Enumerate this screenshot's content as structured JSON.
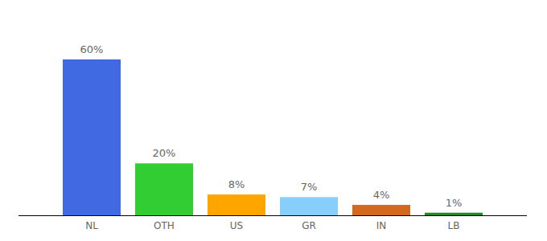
{
  "chart_data": {
    "type": "bar",
    "categories": [
      "NL",
      "OTH",
      "US",
      "GR",
      "IN",
      "LB"
    ],
    "values": [
      60,
      20,
      8,
      7,
      4,
      1
    ],
    "value_labels": [
      "60%",
      "20%",
      "8%",
      "7%",
      "4%",
      "1%"
    ],
    "colors": [
      "#4169e1",
      "#32cd32",
      "#ffa500",
      "#87cefa",
      "#d2691e",
      "#228b22"
    ],
    "ylim": [
      0,
      60
    ],
    "grid": false,
    "data_labels": true,
    "tick_labels": "x"
  }
}
